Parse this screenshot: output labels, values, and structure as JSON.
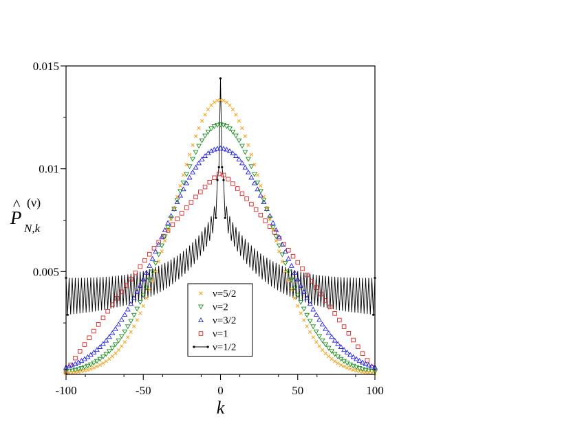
{
  "chart_data": {
    "type": "scatter",
    "title": "",
    "xlabel": "k",
    "ylabel": {
      "hat_letter": "P",
      "subscript": "N,k",
      "superscript": "(ν)"
    },
    "xlim": [
      -100,
      100
    ],
    "ylim": [
      0,
      0.015
    ],
    "x_ticks": [
      -100,
      -50,
      0,
      50,
      100
    ],
    "x_tick_labels": [
      "-100",
      "-50",
      "0",
      "50",
      "100"
    ],
    "y_ticks": [
      0.005,
      0.01,
      0.015
    ],
    "y_tick_labels": [
      "0.005",
      "0.01",
      "0.015"
    ],
    "grid": false,
    "legend_position": "lower-center",
    "series": [
      {
        "name": "ν=5/2",
        "color": "#f5a623",
        "marker": "x",
        "peak": 0.01335,
        "shape": "gaussian",
        "sigma": 30
      },
      {
        "name": "ν=2",
        "color": "#1a8c1a",
        "marker": "triangle-down",
        "peak": 0.01215,
        "shape": "gaussian",
        "sigma": 33
      },
      {
        "name": "ν=3/2",
        "color": "#1f1fe0",
        "marker": "triangle-up",
        "peak": 0.011,
        "shape": "gaussian",
        "sigma": 38
      },
      {
        "name": "ν=1",
        "color": "#e02020",
        "marker": "square",
        "peak": 0.0098,
        "shape": "arccos",
        "edge": 0.00013
      },
      {
        "name": "ν=1/2",
        "color": "#000000",
        "marker": "dot-line",
        "peak": 0.0139,
        "center_base": 0.008,
        "edge_mean": 0.0037,
        "oscillation_amplitude": 0.0009
      }
    ]
  }
}
